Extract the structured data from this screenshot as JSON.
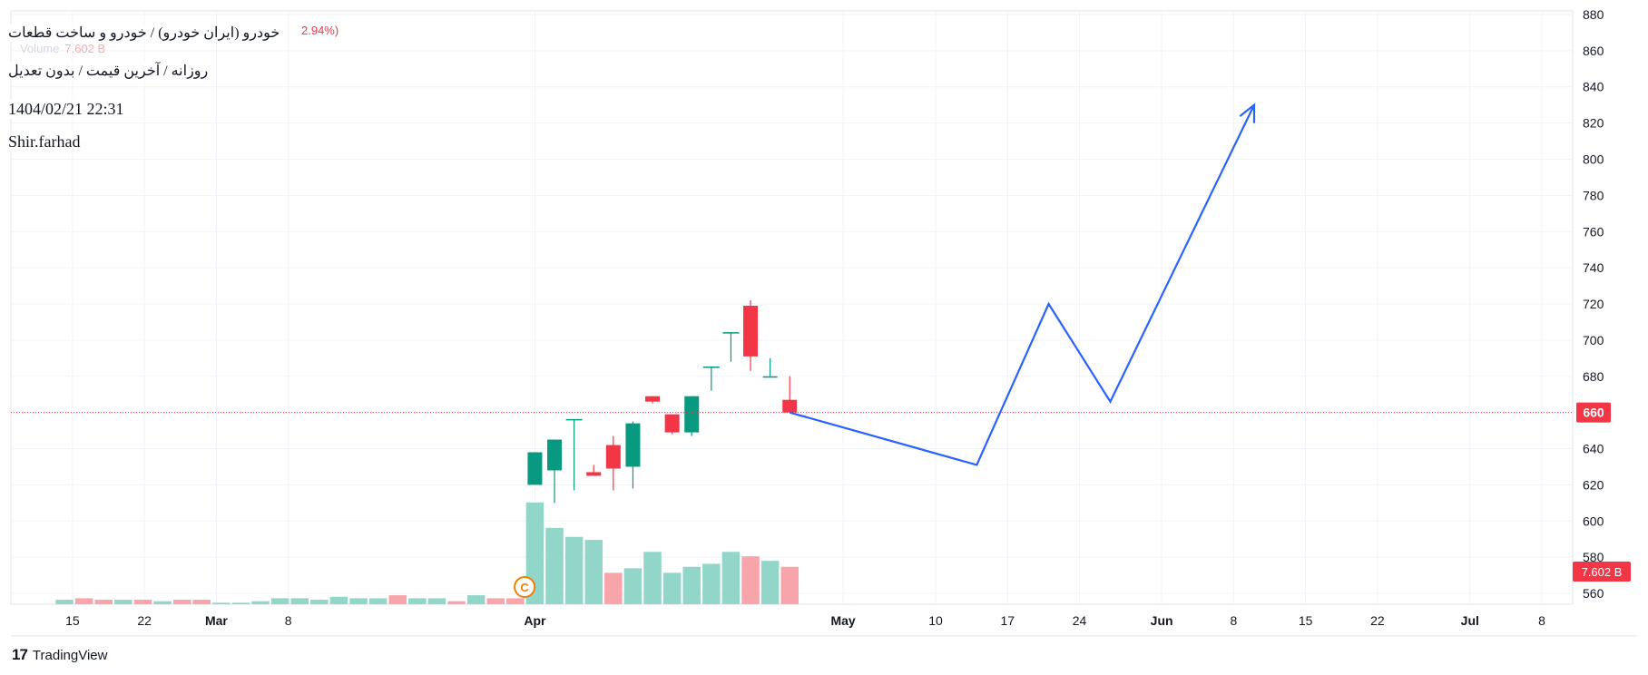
{
  "header": {
    "title": "خودرو (ایران خودرو) / خودرو و ساخت قطعات",
    "subtitle": "روزانه / آخرین قیمت / بدون تعدیل",
    "date": "1404/02/21 22:31",
    "author": "Shir.farhad",
    "change": "2.94%)",
    "volume_label": "Volume",
    "volume_value": "7.602 B"
  },
  "footer": {
    "brand": "TradingView",
    "logo_icon": "tradingview-logo-icon"
  },
  "colors": {
    "up": "#089981",
    "down": "#f23645",
    "vol_up": "#92d6c9",
    "vol_down": "#f7a4ab",
    "projection": "#2962ff",
    "grid": "#f0f3fa",
    "text": "#131722"
  },
  "chart_data": {
    "type": "candlestick",
    "y_axis": {
      "ticks": [
        560,
        580,
        600,
        620,
        640,
        660,
        680,
        700,
        720,
        740,
        760,
        780,
        800,
        820,
        840,
        860,
        880
      ],
      "range": [
        554,
        882
      ]
    },
    "x_axis": {
      "tick_labels": [
        "15",
        "22",
        "Mar",
        "8",
        "Apr",
        "May",
        "10",
        "17",
        "24",
        "Jun",
        "8",
        "15",
        "22",
        "Jul",
        "8"
      ],
      "bold_labels": [
        "Mar",
        "Apr",
        "May",
        "Jun",
        "Jul"
      ],
      "date_range": [
        "2025-02-09",
        "2025-07-11"
      ],
      "tick_dates": [
        "2025-02-15",
        "2025-02-22",
        "2025-03-01",
        "2025-03-08",
        "2025-04-01",
        "2025-05-01",
        "2025-05-10",
        "2025-05-17",
        "2025-05-24",
        "2025-06-01",
        "2025-06-08",
        "2025-06-15",
        "2025-06-22",
        "2025-07-01",
        "2025-07-08"
      ]
    },
    "candles": [
      {
        "date": "2025-04-01",
        "open": 620,
        "high": 638,
        "low": 620,
        "close": 638
      },
      {
        "date": "2025-04-02",
        "open": 628,
        "high": 645,
        "low": 610,
        "close": 645
      },
      {
        "date": "2025-04-03",
        "open": 656,
        "high": 656,
        "low": 617,
        "close": 656
      },
      {
        "date": "2025-04-05",
        "open": 627,
        "high": 631,
        "low": 627,
        "close": 625
      },
      {
        "date": "2025-04-06",
        "open": 642,
        "high": 647,
        "low": 617,
        "close": 629
      },
      {
        "date": "2025-04-07",
        "open": 630,
        "high": 655,
        "low": 618,
        "close": 654
      },
      {
        "date": "2025-04-08",
        "open": 669,
        "high": 669,
        "low": 665,
        "close": 666
      },
      {
        "date": "2025-04-09",
        "open": 659,
        "high": 659,
        "low": 648,
        "close": 649
      },
      {
        "date": "2025-04-10",
        "open": 649,
        "high": 669,
        "low": 647,
        "close": 669
      },
      {
        "date": "2025-04-13",
        "open": 685,
        "high": 685,
        "low": 672,
        "close": 685
      },
      {
        "date": "2025-04-14",
        "open": 704,
        "high": 704,
        "low": 688,
        "close": 704
      },
      {
        "date": "2025-04-15",
        "open": 719,
        "high": 722,
        "low": 683,
        "close": 691
      },
      {
        "date": "2025-04-16",
        "open": 680,
        "high": 690,
        "low": 680,
        "close": 680
      },
      {
        "date": "2025-04-19",
        "open": 667,
        "high": 680,
        "low": 660,
        "close": 660
      }
    ],
    "volume": {
      "last_value": "7.602 B",
      "pre_bars": [
        3,
        4,
        3,
        3,
        3,
        2,
        3,
        3,
        1,
        1,
        2,
        4,
        4,
        3,
        5,
        4,
        4,
        6,
        4,
        4,
        2,
        6,
        4,
        4
      ],
      "bars": [
        68,
        51,
        45,
        43,
        21,
        24,
        35,
        21,
        25,
        27,
        35,
        32,
        29,
        25
      ],
      "pre_directions": [
        "up",
        "down",
        "down",
        "up",
        "down",
        "up",
        "down",
        "down",
        "up",
        "up",
        "up",
        "up",
        "up",
        "up",
        "up",
        "up",
        "up",
        "down",
        "up",
        "up",
        "down",
        "up",
        "down",
        "down"
      ],
      "bar_directions": [
        "up",
        "up",
        "up",
        "up",
        "down",
        "up",
        "up",
        "up",
        "up",
        "up",
        "up",
        "down",
        "up",
        "down"
      ]
    },
    "last_price": 660,
    "last_price_label": "660",
    "projection": {
      "points": [
        {
          "date": "2025-05-11",
          "price": 660
        },
        {
          "date": "2025-05-14",
          "price": 631
        },
        {
          "date": "2025-05-21",
          "price": 720
        },
        {
          "date": "2025-05-27",
          "price": 666
        },
        {
          "date": "2025-06-10",
          "price": 830
        }
      ]
    },
    "event_marker": {
      "label": "C",
      "date": "2025-03-31"
    },
    "title": "",
    "xlabel": "",
    "ylabel": ""
  }
}
